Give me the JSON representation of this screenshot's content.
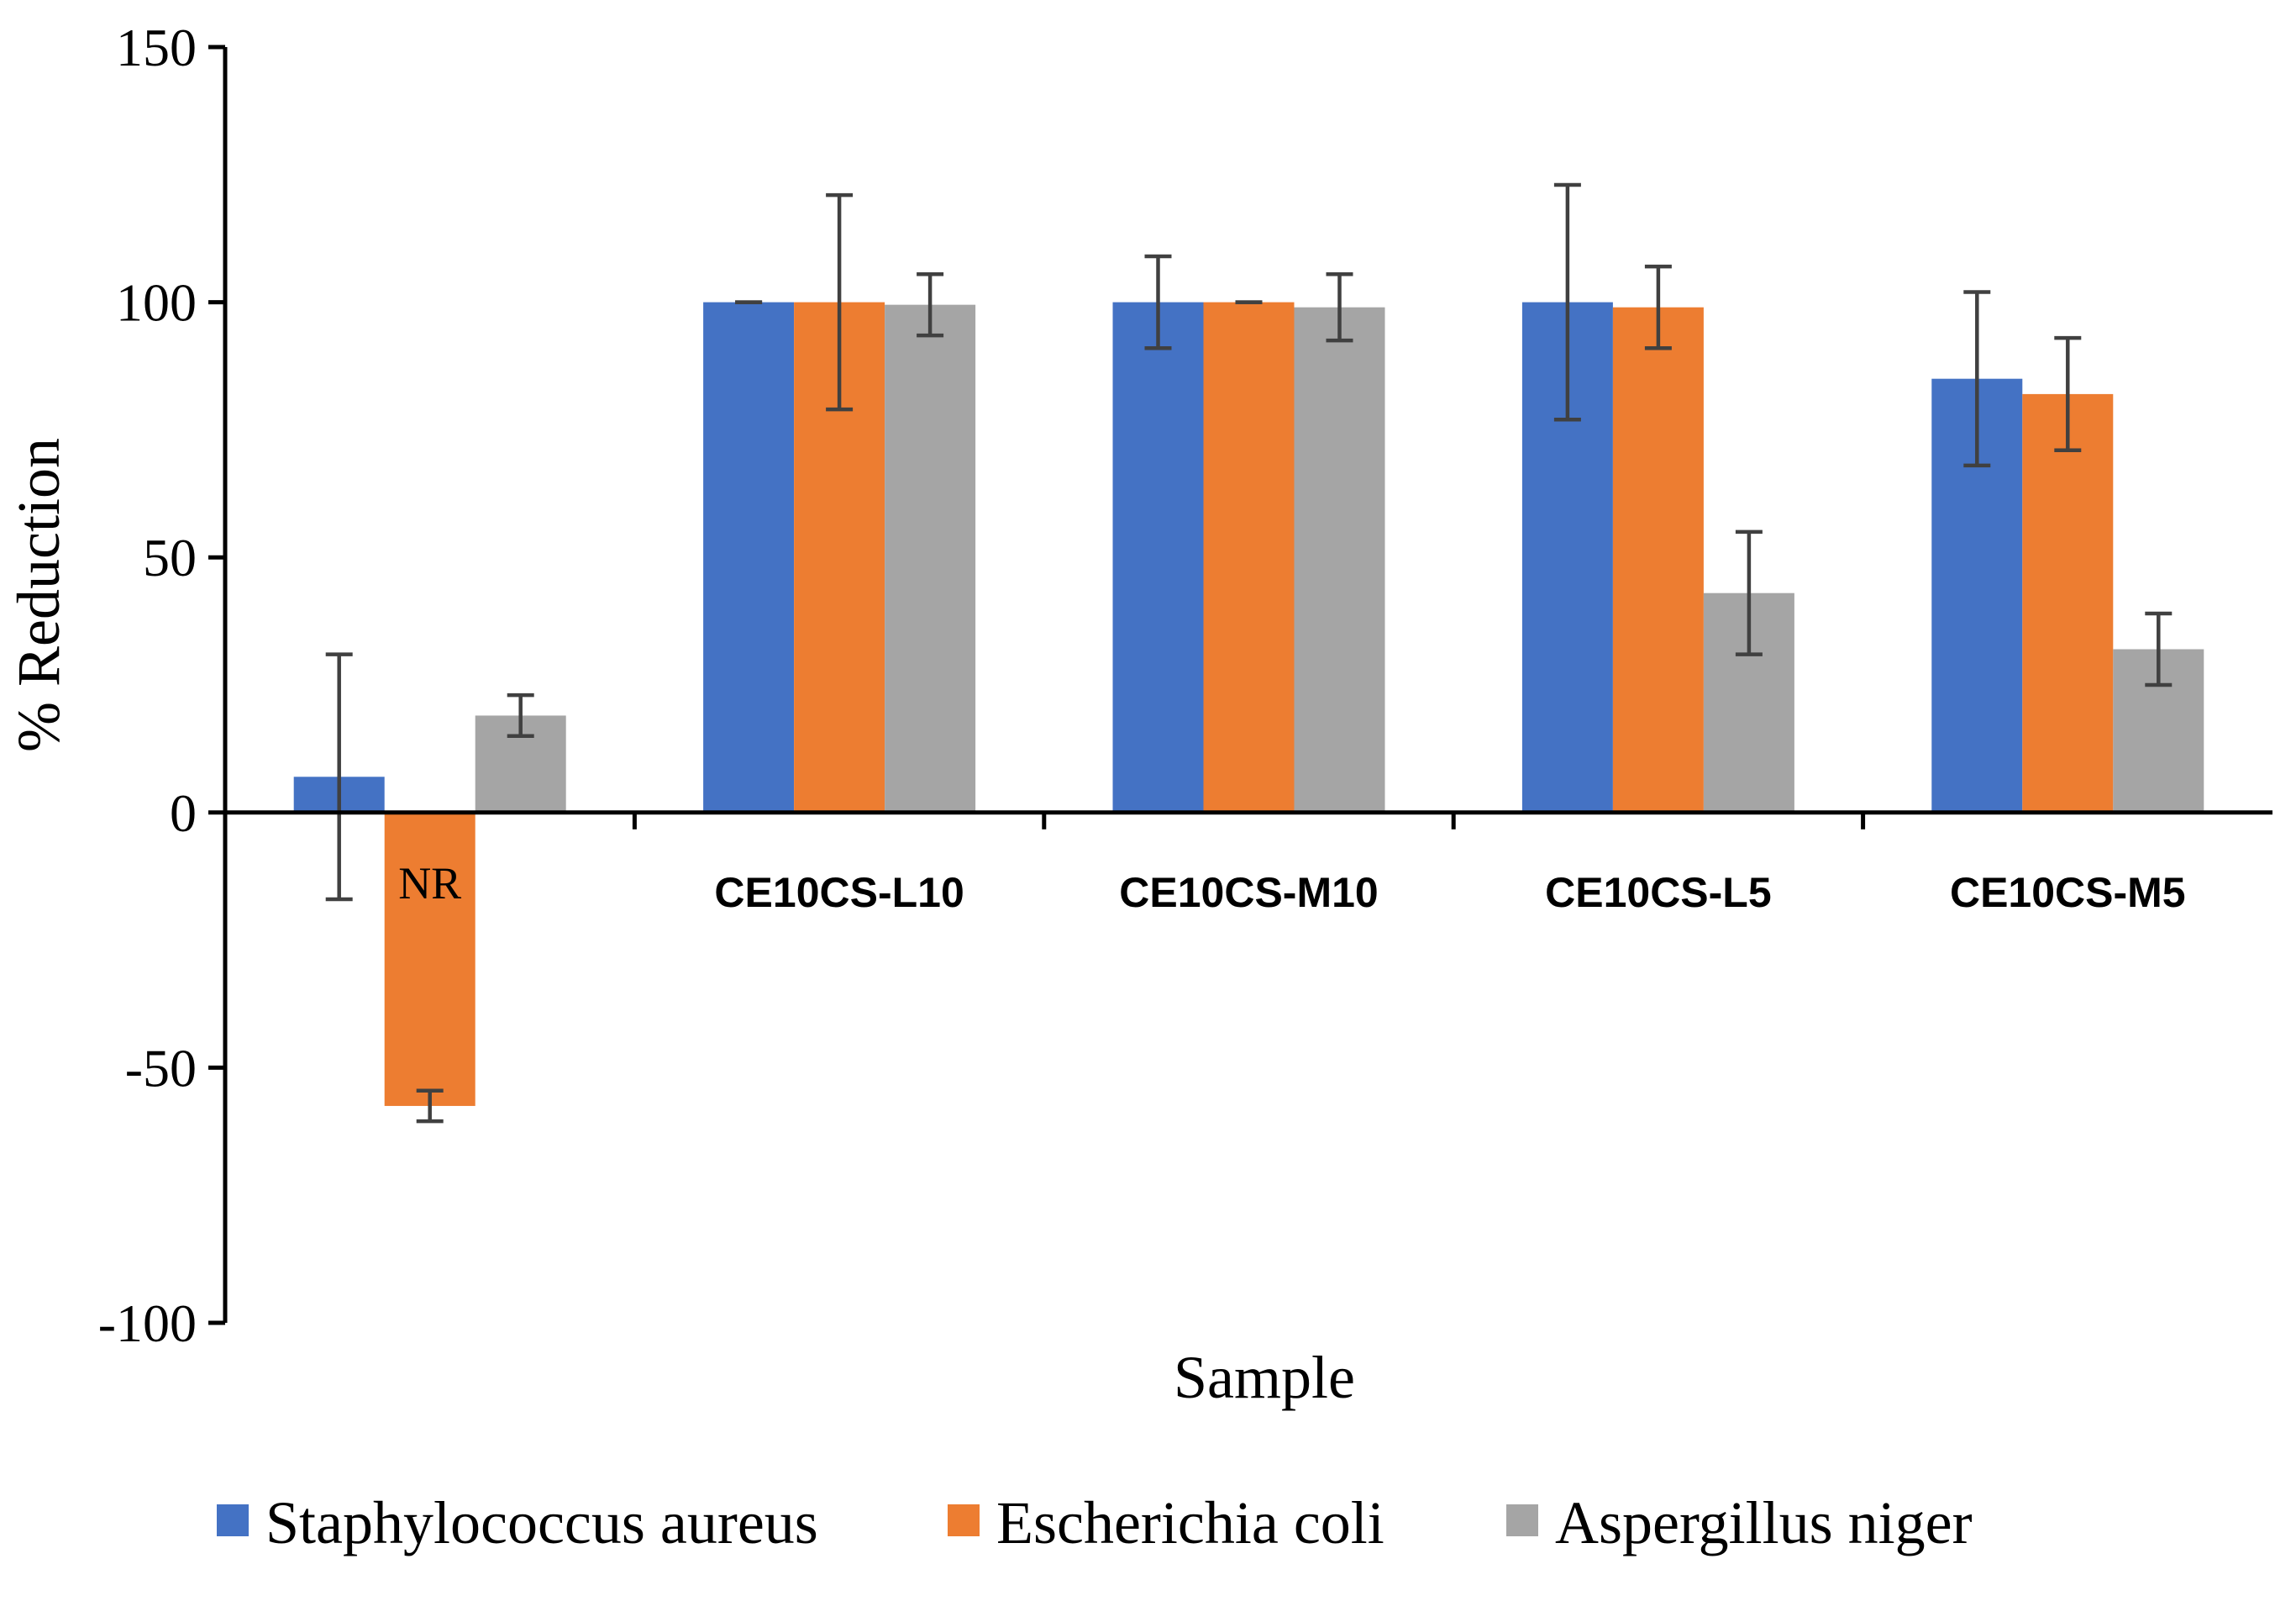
{
  "chart_data": {
    "type": "bar",
    "xlabel": "Sample",
    "ylabel": "% Reduction",
    "ylim": [
      -100,
      150
    ],
    "yticks": [
      -100,
      -50,
      0,
      50,
      100,
      150
    ],
    "ytick_labels": [
      "-100",
      "-50",
      "0",
      "50",
      "100",
      "150"
    ],
    "categories": [
      "NR",
      "CE10CS-L10",
      "CE10CS-M10",
      "CE10CS-L5",
      "CE10CS-M5"
    ],
    "grid": false,
    "legend_position": "bottom",
    "series": [
      {
        "name": "Staphylococcus aureus",
        "color": "#4472C4",
        "values": [
          7,
          100,
          100,
          100,
          85
        ],
        "errors": [
          24,
          0,
          9,
          23,
          17
        ]
      },
      {
        "name": "Escherichia coli",
        "color": "#ED7D31",
        "values": [
          -57.5,
          100,
          100,
          99,
          82
        ],
        "errors": [
          3,
          21,
          0,
          8,
          11
        ]
      },
      {
        "name": "Aspergillus niger",
        "color": "#A5A5A5",
        "values": [
          19,
          99.5,
          99,
          43,
          32
        ],
        "errors": [
          4,
          6,
          6.5,
          12,
          7
        ]
      }
    ]
  }
}
